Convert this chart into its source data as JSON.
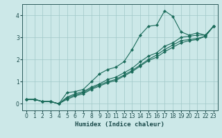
{
  "xlabel": "Humidex (Indice chaleur)",
  "bg_color": "#cce8e8",
  "line_color": "#1a6b5a",
  "grid_color": "#a0c8c8",
  "xlim": [
    -0.5,
    23.5
  ],
  "ylim": [
    -0.3,
    4.5
  ],
  "xticks": [
    0,
    1,
    2,
    3,
    4,
    5,
    6,
    7,
    8,
    9,
    10,
    11,
    12,
    13,
    14,
    15,
    16,
    17,
    18,
    19,
    20,
    21,
    22,
    23
  ],
  "yticks": [
    0,
    1,
    2,
    3,
    4
  ],
  "series": [
    [
      0.2,
      0.2,
      0.1,
      0.1,
      0.0,
      0.5,
      0.55,
      0.65,
      1.0,
      1.35,
      1.55,
      1.65,
      1.9,
      2.45,
      3.1,
      3.5,
      3.55,
      4.2,
      3.95,
      3.25,
      3.1,
      3.2,
      3.1,
      3.5
    ],
    [
      0.2,
      0.2,
      0.1,
      0.1,
      0.0,
      0.3,
      0.45,
      0.55,
      0.75,
      0.9,
      1.1,
      1.2,
      1.4,
      1.6,
      1.9,
      2.15,
      2.3,
      2.6,
      2.75,
      3.0,
      3.05,
      3.1,
      3.1,
      3.5
    ],
    [
      0.2,
      0.2,
      0.1,
      0.1,
      0.0,
      0.25,
      0.4,
      0.5,
      0.7,
      0.85,
      1.0,
      1.1,
      1.3,
      1.5,
      1.75,
      2.0,
      2.2,
      2.45,
      2.65,
      2.85,
      2.9,
      2.95,
      3.05,
      3.5
    ],
    [
      0.2,
      0.2,
      0.1,
      0.1,
      0.0,
      0.2,
      0.35,
      0.45,
      0.65,
      0.8,
      0.95,
      1.05,
      1.25,
      1.45,
      1.7,
      1.95,
      2.1,
      2.35,
      2.55,
      2.75,
      2.85,
      2.9,
      3.05,
      3.5
    ]
  ],
  "marker": "D",
  "markersize": 2.2,
  "linewidth": 0.8,
  "tick_fontsize": 5.5,
  "xlabel_fontsize": 6.5
}
